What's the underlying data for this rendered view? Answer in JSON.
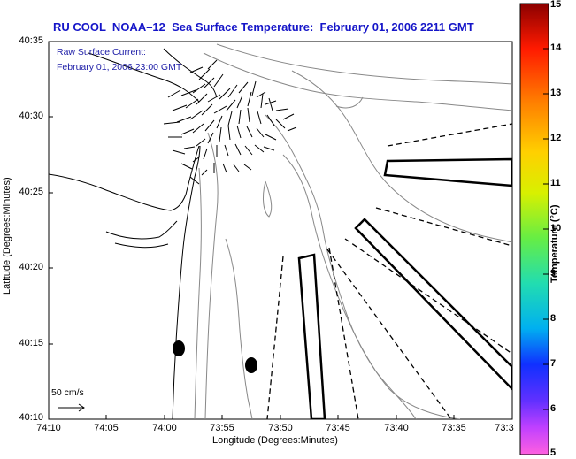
{
  "title": "RU COOL  NOAA–12  Sea Surface Temperature:  February 01, 2006 2211 GMT",
  "current_label": "Raw Surface Current:",
  "current_time": "February 01, 2006 23:00 GMT",
  "scale_label": "50 cm/s",
  "axes": {
    "xlabel": "Longitude (Degrees:Minutes)",
    "ylabel": "Latitude (Degrees:Minutes)",
    "xticks": [
      "74:10",
      "74:05",
      "74:00",
      "73:55",
      "73:50",
      "73:45",
      "73:40",
      "73:35",
      "73:3"
    ],
    "yticks": [
      "40:35",
      "40:30",
      "40:25",
      "40:20",
      "40:15",
      "40:10"
    ]
  },
  "colorbar": {
    "label": "Temperature (°C)",
    "ticks": [
      "15",
      "14",
      "13",
      "12",
      "11",
      "10",
      "9",
      "8",
      "7",
      "6",
      "5"
    ],
    "colors": [
      "#8b0000",
      "#d40000",
      "#ff2a00",
      "#ff6a00",
      "#ffb000",
      "#ffee00",
      "#ccff00",
      "#66ee33",
      "#22dd99",
      "#00c8e0",
      "#0070ff",
      "#1a1aff",
      "#6a2aff",
      "#c040ff",
      "#ff4ddc"
    ]
  },
  "markers": [
    {
      "name": "marker-west",
      "lon": "74:00 W",
      "lat": "40:15 N"
    },
    {
      "name": "marker-east",
      "lon": "73:52 W",
      "lat": "40:13 N"
    }
  ]
}
